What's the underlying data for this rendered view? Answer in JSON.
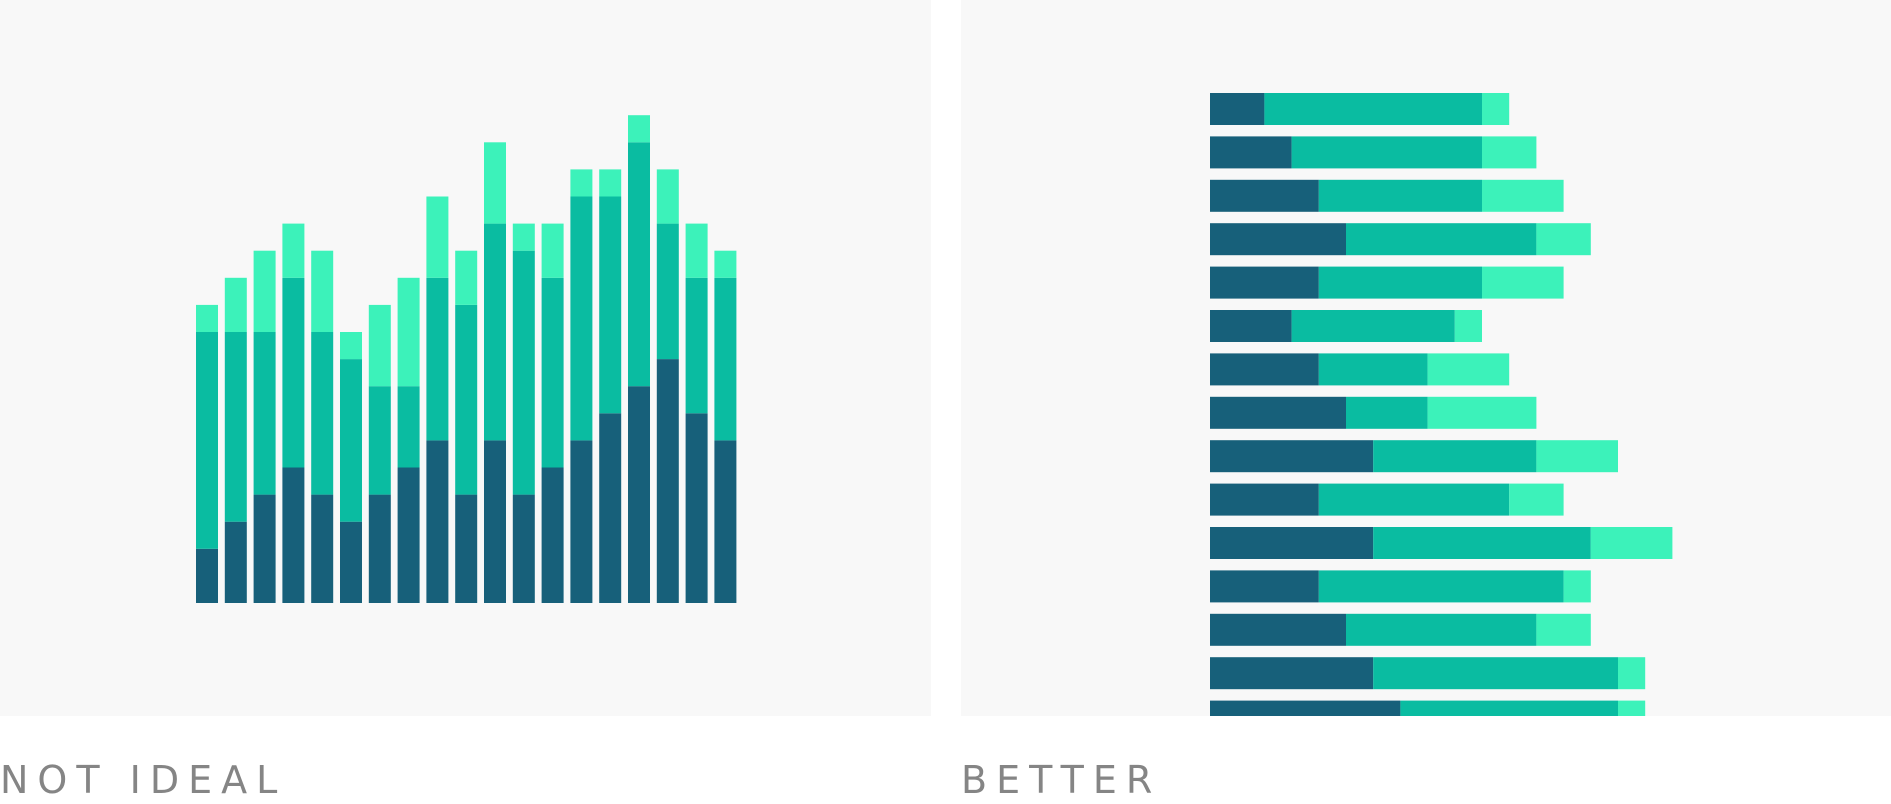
{
  "colors": {
    "series_dark": "#17607a",
    "series_mid": "#0abca1",
    "series_light": "#3cf2ba",
    "panel_bg": "#f8f8f8",
    "caption": "#858585"
  },
  "captions": {
    "left": "NOT IDEAL",
    "right": "BETTER"
  },
  "chart_data": [
    {
      "type": "bar",
      "orientation": "vertical",
      "stacked": true,
      "axes_visible": false,
      "grid": false,
      "segments_per_bar": 3,
      "values": [
        [
          2,
          8,
          1
        ],
        [
          3,
          7,
          2
        ],
        [
          4,
          6,
          3
        ],
        [
          5,
          7,
          2
        ],
        [
          4,
          6,
          3
        ],
        [
          3,
          6,
          1
        ],
        [
          4,
          4,
          3
        ],
        [
          5,
          3,
          4
        ],
        [
          6,
          6,
          3
        ],
        [
          4,
          7,
          2
        ],
        [
          6,
          8,
          3
        ],
        [
          4,
          9,
          1
        ],
        [
          5,
          7,
          2
        ],
        [
          6,
          9,
          1
        ],
        [
          7,
          8,
          1
        ],
        [
          8,
          9,
          1
        ],
        [
          9,
          5,
          2
        ],
        [
          7,
          5,
          2
        ],
        [
          6,
          6,
          1
        ]
      ]
    },
    {
      "type": "bar",
      "orientation": "horizontal",
      "stacked": true,
      "axes_visible": false,
      "grid": false,
      "segments_per_bar": 3,
      "values": [
        [
          2,
          8,
          1
        ],
        [
          3,
          7,
          2
        ],
        [
          4,
          6,
          3
        ],
        [
          5,
          7,
          2
        ],
        [
          4,
          6,
          3
        ],
        [
          3,
          6,
          1
        ],
        [
          4,
          4,
          3
        ],
        [
          5,
          3,
          4
        ],
        [
          6,
          6,
          3
        ],
        [
          4,
          7,
          2
        ],
        [
          6,
          8,
          3
        ],
        [
          4,
          9,
          1
        ],
        [
          5,
          7,
          2
        ],
        [
          6,
          9,
          1
        ],
        [
          7,
          8,
          1
        ]
      ]
    }
  ]
}
